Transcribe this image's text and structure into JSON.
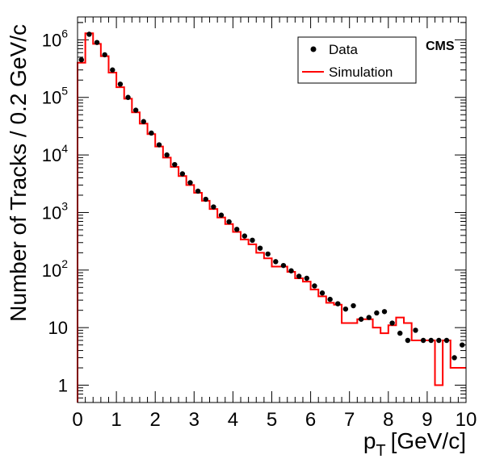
{
  "chart_data": {
    "type": "line",
    "title": "",
    "xlabel": "p",
    "xlabel_sub": "T",
    "xlabel_unit": "[GeV/c]",
    "ylabel": "Number of Tracks / 0.2 GeV/c",
    "xlim": [
      0,
      10
    ],
    "ylim": [
      0.5,
      2500000
    ],
    "yscale": "log",
    "grid": false,
    "legend_position": "top-right",
    "experiment_label": "CMS",
    "x_ticks": [
      "0",
      "1",
      "2",
      "3",
      "4",
      "5",
      "6",
      "7",
      "8",
      "9",
      "10"
    ],
    "y_ticks": [
      {
        "value": 1,
        "base": "1",
        "exp": ""
      },
      {
        "value": 10,
        "base": "10",
        "exp": ""
      },
      {
        "value": 100,
        "base": "10",
        "exp": "2"
      },
      {
        "value": 1000,
        "base": "10",
        "exp": "3"
      },
      {
        "value": 10000,
        "base": "10",
        "exp": "4"
      },
      {
        "value": 100000,
        "base": "10",
        "exp": "5"
      },
      {
        "value": 1000000,
        "base": "10",
        "exp": "6"
      }
    ],
    "bin_width": 0.2,
    "series": [
      {
        "name": "Data",
        "style": "points",
        "color": "#000000",
        "x": [
          0.1,
          0.3,
          0.5,
          0.7,
          0.9,
          1.1,
          1.3,
          1.5,
          1.7,
          1.9,
          2.1,
          2.3,
          2.5,
          2.7,
          2.9,
          3.1,
          3.3,
          3.5,
          3.7,
          3.9,
          4.1,
          4.3,
          4.5,
          4.7,
          4.9,
          5.1,
          5.3,
          5.5,
          5.7,
          5.9,
          6.1,
          6.3,
          6.5,
          6.7,
          6.9,
          7.1,
          7.3,
          7.5,
          7.7,
          7.9,
          8.1,
          8.3,
          8.5,
          8.7,
          8.9,
          9.1,
          9.3,
          9.5,
          9.7,
          9.9
        ],
        "values": [
          450000,
          1250000,
          900000,
          550000,
          300000,
          170000,
          100000,
          60000,
          38000,
          24000,
          15000,
          10000,
          6800,
          4700,
          3300,
          2350,
          1700,
          1250,
          900,
          690,
          510,
          390,
          330,
          240,
          190,
          140,
          120,
          97,
          78,
          72,
          53,
          40,
          31,
          26,
          21,
          24,
          14,
          15,
          18,
          19,
          12,
          8,
          6,
          9,
          6,
          6,
          6,
          6,
          3,
          5
        ]
      },
      {
        "name": "Simulation",
        "style": "step",
        "color": "#ff0000",
        "x": [
          0.1,
          0.3,
          0.5,
          0.7,
          0.9,
          1.1,
          1.3,
          1.5,
          1.7,
          1.9,
          2.1,
          2.3,
          2.5,
          2.7,
          2.9,
          3.1,
          3.3,
          3.5,
          3.7,
          3.9,
          4.1,
          4.3,
          4.5,
          4.7,
          4.9,
          5.1,
          5.3,
          5.5,
          5.7,
          5.9,
          6.1,
          6.3,
          6.5,
          6.7,
          6.9,
          7.1,
          7.3,
          7.5,
          7.7,
          7.9,
          8.1,
          8.3,
          8.5,
          8.7,
          8.9,
          9.1,
          9.3,
          9.5,
          9.7,
          9.9
        ],
        "values": [
          400000,
          1300000,
          850000,
          520000,
          270000,
          150000,
          95000,
          55000,
          35000,
          23000,
          14000,
          9000,
          6200,
          4300,
          3000,
          2200,
          1600,
          1150,
          820,
          630,
          460,
          340,
          280,
          200,
          160,
          115,
          115,
          93,
          72,
          63,
          46,
          35,
          27,
          25,
          12,
          12,
          14,
          14,
          10,
          8,
          11,
          15,
          12,
          6,
          6,
          6,
          1,
          6,
          2,
          2
        ]
      }
    ]
  }
}
